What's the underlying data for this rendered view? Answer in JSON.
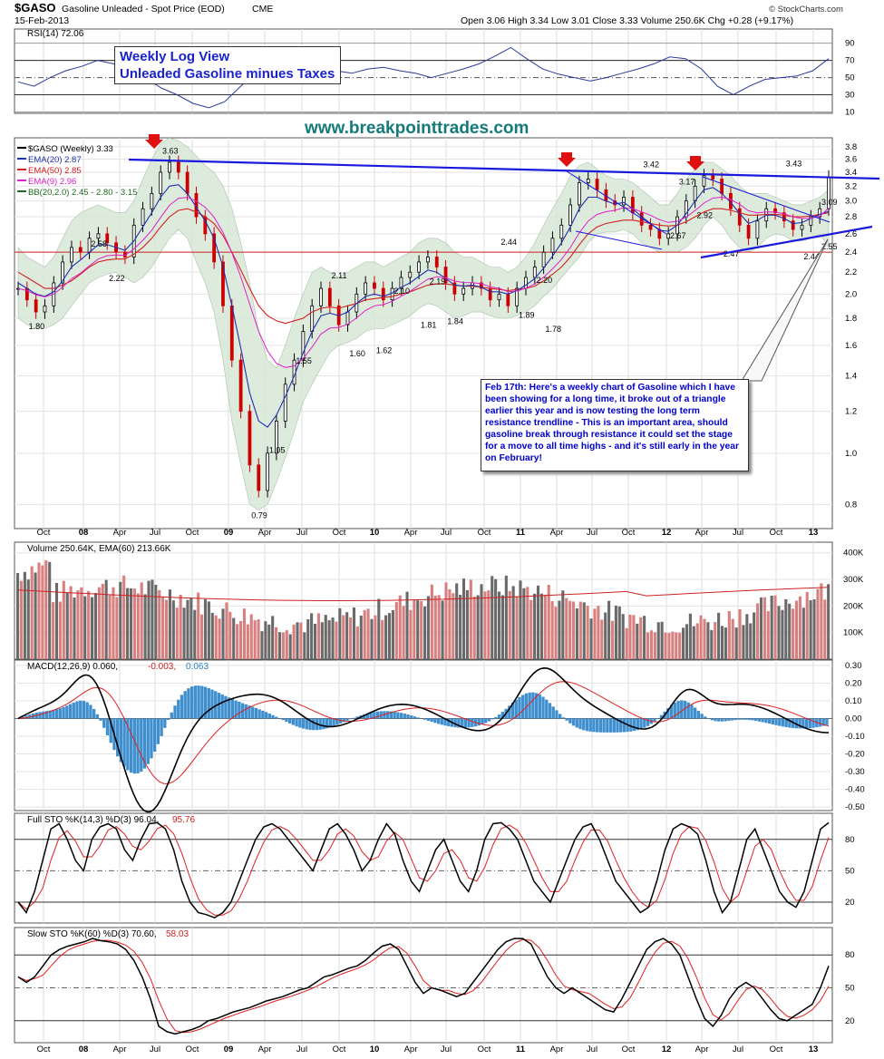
{
  "header": {
    "symbol": "$GASO",
    "name": "Gasoline Unleaded - Spot Price (EOD)",
    "exchange": "CME",
    "date": "15-Feb-2013",
    "quote": "Open 3.06  High 3.34  Low 3.01  Close 3.33  Volume 250.6K  Chg +0.28 (+9.17%)",
    "brand": "© StockCharts.com"
  },
  "overlay": {
    "title_line1": "Weekly Log View",
    "title_line2": "Unleaded Gasoline minues Taxes",
    "website": "www.breakpointtrades.com",
    "annotation": "Feb 17th: Here's a weekly chart of Gasoline which I have been showing for a long time, it broke out of a triangle earlier this year and is now testing the long term resistance trendline - This is an important area, should gasoline break through resistance it could set the stage for a move to all time highs - and it's still early in the year on February!"
  },
  "colors": {
    "up_candle": "#000000",
    "down_candle": "#cc0000",
    "ema20": "#1e2fb0",
    "ema50": "#d42020",
    "ema9": "#e020c8",
    "band_fill": "#d8e8d8",
    "trendline": "#1a1adc",
    "support": "#cc2222",
    "volume_up": "#6a6a6a",
    "volume_down": "#d88080",
    "macd_hist": "#3f8fcf",
    "rsi": "#2a3a9a"
  },
  "x_axis_labels": [
    "Oct",
    "08",
    "Apr",
    "Jul",
    "Oct",
    "09",
    "Apr",
    "Jul",
    "Oct",
    "10",
    "Apr",
    "Jul",
    "Oct",
    "11",
    "Apr",
    "Jul",
    "Oct",
    "12",
    "Apr",
    "Jul",
    "Oct",
    "13"
  ],
  "chart_data": [
    {
      "panel": "rsi",
      "type": "line",
      "legend": "RSI(14) 72.06",
      "yticks": [
        90,
        70,
        50,
        30,
        10
      ],
      "values": [
        45,
        40,
        50,
        58,
        63,
        70,
        66,
        58,
        50,
        38,
        30,
        20,
        15,
        22,
        40,
        55,
        60,
        62,
        58,
        60,
        58,
        55,
        60,
        62,
        58,
        55,
        50,
        55,
        60,
        66,
        75,
        85,
        72,
        60,
        54,
        50,
        46,
        50,
        55,
        60,
        66,
        74,
        72,
        60,
        40,
        30,
        40,
        48,
        50,
        52,
        58,
        72
      ]
    },
    {
      "panel": "price",
      "type": "candlestick",
      "legend": [
        "$GASO (Weekly) 3.33",
        "EMA(20) 2.87",
        "EMA(50) 2.85",
        "EMA(9) 2.96",
        "BB(20,2.0) 2.45 - 2.80 - 3.15"
      ],
      "scale": "log",
      "yticks": [
        3.8,
        3.6,
        3.4,
        3.2,
        3.0,
        2.8,
        2.6,
        2.4,
        2.2,
        2.0,
        1.8,
        1.6,
        1.4,
        1.2,
        1.0,
        0.8
      ],
      "ylim": [
        0.72,
        3.95
      ],
      "closes": [
        2.05,
        1.95,
        1.85,
        1.9,
        2.1,
        2.3,
        2.45,
        2.4,
        2.55,
        2.6,
        2.5,
        2.4,
        2.35,
        2.7,
        2.9,
        3.1,
        3.4,
        3.55,
        3.4,
        3.1,
        2.8,
        2.6,
        2.3,
        1.9,
        1.5,
        1.2,
        0.95,
        0.85,
        1.0,
        1.15,
        1.35,
        1.5,
        1.7,
        1.9,
        2.05,
        1.9,
        1.75,
        1.85,
        2.0,
        2.1,
        2.05,
        1.95,
        2.05,
        2.15,
        2.2,
        2.3,
        2.35,
        2.25,
        2.1,
        2.0,
        2.05,
        2.1,
        2.05,
        1.95,
        2.0,
        1.9,
        2.05,
        2.15,
        2.25,
        2.4,
        2.55,
        2.7,
        2.95,
        3.25,
        3.3,
        3.15,
        3.0,
        2.95,
        3.05,
        2.85,
        2.7,
        2.65,
        2.55,
        2.6,
        2.8,
        3.0,
        3.2,
        3.35,
        3.3,
        3.1,
        2.9,
        2.7,
        2.55,
        2.75,
        2.9,
        2.85,
        2.75,
        2.65,
        2.7,
        2.8,
        2.9,
        3.33
      ],
      "ema20": [
        2.1,
        2.05,
        2.0,
        1.98,
        2.02,
        2.12,
        2.25,
        2.32,
        2.4,
        2.48,
        2.48,
        2.45,
        2.42,
        2.52,
        2.68,
        2.85,
        3.05,
        3.2,
        3.22,
        3.1,
        2.92,
        2.75,
        2.55,
        2.25,
        1.9,
        1.58,
        1.3,
        1.15,
        1.12,
        1.18,
        1.28,
        1.4,
        1.55,
        1.7,
        1.82,
        1.84,
        1.82,
        1.85,
        1.92,
        1.98,
        2.0,
        1.98,
        2.01,
        2.06,
        2.1,
        2.16,
        2.22,
        2.2,
        2.14,
        2.08,
        2.07,
        2.08,
        2.06,
        2.02,
        2.02,
        2.0,
        2.03,
        2.08,
        2.14,
        2.24,
        2.36,
        2.5,
        2.68,
        2.9,
        3.05,
        3.05,
        3.0,
        2.96,
        2.98,
        2.9,
        2.8,
        2.72,
        2.64,
        2.63,
        2.7,
        2.84,
        3.0,
        3.15,
        3.18,
        3.1,
        2.98,
        2.84,
        2.72,
        2.76,
        2.82,
        2.82,
        2.78,
        2.72,
        2.73,
        2.78,
        2.83,
        2.87
      ],
      "ema50": [
        2.2,
        2.15,
        2.1,
        2.05,
        2.05,
        2.08,
        2.12,
        2.18,
        2.25,
        2.3,
        2.32,
        2.33,
        2.33,
        2.38,
        2.45,
        2.55,
        2.68,
        2.8,
        2.88,
        2.9,
        2.86,
        2.8,
        2.72,
        2.58,
        2.4,
        2.22,
        2.05,
        1.9,
        1.82,
        1.78,
        1.76,
        1.78,
        1.8,
        1.85,
        1.88,
        1.89,
        1.88,
        1.9,
        1.92,
        1.95,
        1.96,
        1.97,
        1.98,
        2.0,
        2.02,
        2.05,
        2.08,
        2.09,
        2.09,
        2.08,
        2.07,
        2.07,
        2.06,
        2.05,
        2.04,
        2.03,
        2.04,
        2.05,
        2.07,
        2.12,
        2.18,
        2.25,
        2.35,
        2.48,
        2.6,
        2.68,
        2.72,
        2.74,
        2.76,
        2.76,
        2.74,
        2.72,
        2.7,
        2.69,
        2.7,
        2.74,
        2.8,
        2.86,
        2.9,
        2.9,
        2.88,
        2.85,
        2.82,
        2.82,
        2.83,
        2.83,
        2.82,
        2.8,
        2.8,
        2.81,
        2.83,
        2.85
      ],
      "bb_upper": [
        2.45,
        2.35,
        2.3,
        2.25,
        2.35,
        2.55,
        2.75,
        2.85,
        2.9,
        2.95,
        2.9,
        2.85,
        2.85,
        3.0,
        3.3,
        3.6,
        3.85,
        3.95,
        3.9,
        3.8,
        3.65,
        3.5,
        3.4,
        3.2,
        2.9,
        2.5,
        2.1,
        1.7,
        1.5,
        1.45,
        1.6,
        1.8,
        2.0,
        2.2,
        2.25,
        2.2,
        2.15,
        2.2,
        2.25,
        2.3,
        2.3,
        2.25,
        2.3,
        2.35,
        2.4,
        2.5,
        2.55,
        2.55,
        2.5,
        2.4,
        2.35,
        2.35,
        2.3,
        2.25,
        2.25,
        2.2,
        2.25,
        2.35,
        2.5,
        2.7,
        2.9,
        3.1,
        3.35,
        3.5,
        3.55,
        3.45,
        3.35,
        3.3,
        3.3,
        3.25,
        3.15,
        3.05,
        2.95,
        2.95,
        3.1,
        3.3,
        3.45,
        3.55,
        3.55,
        3.45,
        3.35,
        3.2,
        3.1,
        3.1,
        3.1,
        3.05,
        3.0,
        2.95,
        2.95,
        3.0,
        3.05,
        3.15
      ],
      "bb_lower": [
        1.8,
        1.75,
        1.72,
        1.72,
        1.75,
        1.8,
        1.9,
        2.0,
        2.1,
        2.15,
        2.18,
        2.2,
        2.15,
        2.1,
        2.15,
        2.25,
        2.4,
        2.55,
        2.65,
        2.55,
        2.3,
        2.1,
        1.85,
        1.5,
        1.15,
        0.95,
        0.8,
        0.78,
        0.8,
        0.88,
        0.98,
        1.1,
        1.25,
        1.35,
        1.45,
        1.55,
        1.6,
        1.62,
        1.65,
        1.7,
        1.72,
        1.72,
        1.75,
        1.78,
        1.82,
        1.88,
        1.92,
        1.9,
        1.85,
        1.8,
        1.82,
        1.85,
        1.85,
        1.82,
        1.8,
        1.8,
        1.82,
        1.85,
        1.9,
        1.98,
        2.05,
        2.15,
        2.25,
        2.35,
        2.5,
        2.6,
        2.62,
        2.62,
        2.65,
        2.6,
        2.5,
        2.45,
        2.4,
        2.4,
        2.4,
        2.45,
        2.55,
        2.7,
        2.8,
        2.7,
        2.55,
        2.45,
        2.4,
        2.45,
        2.55,
        2.6,
        2.58,
        2.52,
        2.52,
        2.55,
        2.6,
        2.45
      ],
      "price_labels": [
        {
          "text": "1.80",
          "index": 2
        },
        {
          "text": "2.22",
          "index": 11
        },
        {
          "text": "2.58",
          "index": 9
        },
        {
          "text": "3.63",
          "index": 17
        },
        {
          "text": "0.79",
          "index": 27
        },
        {
          "text": "1.05",
          "index": 29
        },
        {
          "text": "1.55",
          "index": 32
        },
        {
          "text": "2.11",
          "index": 36
        },
        {
          "text": "1.60",
          "index": 38
        },
        {
          "text": "1.62",
          "index": 41
        },
        {
          "text": "2.10",
          "index": 43
        },
        {
          "text": "1.81",
          "index": 46
        },
        {
          "text": "2.19",
          "index": 47
        },
        {
          "text": "1.84",
          "index": 49
        },
        {
          "text": "2.44",
          "index": 55
        },
        {
          "text": "1.89",
          "index": 57
        },
        {
          "text": "2.20",
          "index": 59
        },
        {
          "text": "1.78",
          "index": 60
        },
        {
          "text": "3.42",
          "index": 71
        },
        {
          "text": "3.17",
          "index": 75
        },
        {
          "text": "2.92",
          "index": 77
        },
        {
          "text": "2.67",
          "index": 74
        },
        {
          "text": "2.47",
          "index": 80
        },
        {
          "text": "3.43",
          "index": 87
        },
        {
          "text": "3.09",
          "index": 93
        },
        {
          "text": "2.44",
          "index": 89
        },
        {
          "text": "2.55",
          "index": 98
        }
      ]
    },
    {
      "panel": "volume",
      "type": "bar",
      "legend": "Volume 250.64K, EMA(60) 213.66K",
      "yticks": [
        "400K",
        "300K",
        "200K",
        "100K"
      ],
      "ylim": [
        0,
        440000
      ]
    },
    {
      "panel": "macd",
      "type": "line",
      "legend": [
        "MACD(12,26,9) 0.060,",
        "-0.003,",
        "0.063"
      ],
      "yticks": [
        0.3,
        0.2,
        0.1,
        0.0,
        -0.1,
        -0.2,
        -0.3,
        -0.4,
        -0.5
      ],
      "ylim": [
        -0.52,
        0.33
      ]
    },
    {
      "panel": "full_sto",
      "type": "line",
      "legend": [
        "Full STO %K(14,3) %D(3) 96.04,",
        "95.76"
      ],
      "yticks": [
        80,
        50,
        20
      ],
      "values": [
        20,
        10,
        30,
        60,
        90,
        95,
        80,
        60,
        50,
        80,
        92,
        95,
        90,
        70,
        60,
        80,
        95,
        96,
        90,
        70,
        40,
        20,
        10,
        8,
        5,
        10,
        20,
        40,
        60,
        80,
        92,
        95,
        90,
        80,
        70,
        60,
        50,
        70,
        90,
        95,
        85,
        70,
        50,
        60,
        80,
        95,
        85,
        60,
        40,
        30,
        50,
        70,
        80,
        60,
        40,
        30,
        50,
        80,
        95,
        96,
        90,
        80,
        60,
        40,
        30,
        20,
        40,
        60,
        80,
        92,
        95,
        80,
        60,
        40,
        30,
        20,
        10,
        15,
        40,
        70,
        90,
        95,
        92,
        85,
        60,
        30,
        10,
        20,
        50,
        80,
        90,
        70,
        50,
        30,
        20,
        15,
        30,
        60,
        90,
        96
      ]
    },
    {
      "panel": "slow_sto",
      "type": "line",
      "legend": [
        "Slow STO %K(60) %D(3) 70.60,",
        "58.03"
      ],
      "yticks": [
        80,
        50,
        20
      ],
      "values": [
        60,
        55,
        60,
        70,
        80,
        85,
        88,
        90,
        92,
        95,
        93,
        92,
        90,
        85,
        75,
        60,
        40,
        15,
        10,
        8,
        10,
        12,
        15,
        20,
        22,
        25,
        28,
        30,
        32,
        35,
        38,
        40,
        42,
        45,
        48,
        50,
        55,
        60,
        62,
        65,
        68,
        70,
        75,
        82,
        88,
        90,
        85,
        70,
        55,
        45,
        50,
        48,
        45,
        42,
        45,
        55,
        65,
        75,
        85,
        92,
        95,
        95,
        90,
        75,
        60,
        50,
        45,
        50,
        45,
        40,
        35,
        30,
        28,
        40,
        55,
        70,
        85,
        92,
        95,
        90,
        80,
        60,
        40,
        22,
        15,
        25,
        40,
        50,
        55,
        50,
        40,
        30,
        22,
        20,
        25,
        30,
        35,
        50,
        70
      ]
    }
  ]
}
